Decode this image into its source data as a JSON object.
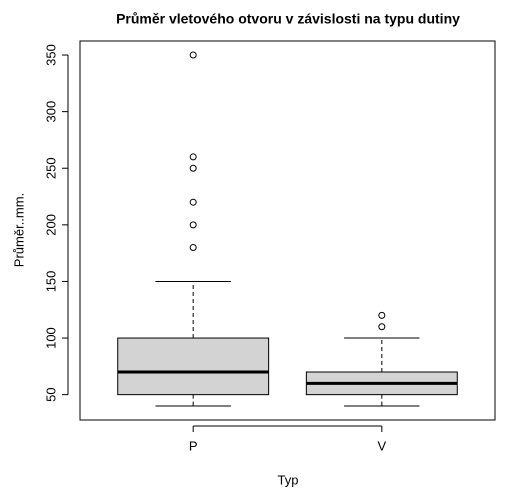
{
  "chart_data": {
    "type": "boxplot",
    "title": "Průměr vletového otvoru v závislosti na typu dutiny",
    "xlabel": "Typ",
    "ylabel": "Průměr..mm.",
    "categories": [
      "P",
      "V"
    ],
    "boxes": [
      {
        "whislo": 40,
        "q1": 50,
        "med": 70,
        "q3": 100,
        "whishi": 150,
        "fliers": [
          180,
          200,
          220,
          250,
          260,
          350
        ]
      },
      {
        "whislo": 40,
        "q1": 50,
        "med": 60,
        "q3": 70,
        "whishi": 100,
        "fliers": [
          110,
          120
        ]
      }
    ],
    "color": "#d3d3d3",
    "ylim": [
      27.6,
      362.4
    ],
    "yticks": [
      50,
      100,
      150,
      200,
      250,
      300,
      350
    ]
  }
}
